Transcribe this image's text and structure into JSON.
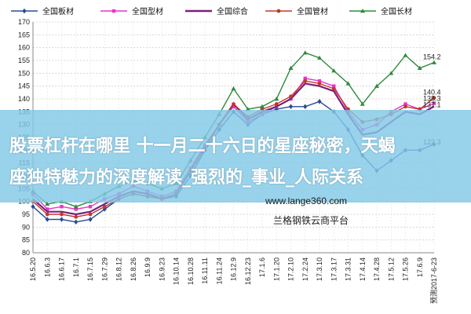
{
  "chart_data": {
    "type": "line",
    "ylim": [
      80,
      170
    ],
    "y_ticks": [
      80,
      85,
      90,
      95,
      100,
      105,
      110,
      115,
      120,
      125,
      130,
      135,
      140,
      145,
      150,
      155,
      160,
      165,
      170
    ],
    "x_tick_labels": [
      "16.5.20",
      "16.6.3",
      "16.6.17",
      "16.7.1",
      "16.7.15",
      "16.7.29",
      "16.8.12",
      "16.8.26",
      "16.9.9",
      "16.9.23",
      "16.10.14",
      "16.10.28",
      "16.11.11",
      "16.11.24",
      "16.12.9",
      "16.12.23",
      "17.1.6",
      "17.1.20",
      "17.2.10",
      "17.2.24",
      "17.3.10",
      "17.3.17",
      "17.3.31",
      "17.4.14",
      "17.4.28",
      "17.5.12",
      "17.5.26",
      "17.6.9",
      "预测2017-6-23"
    ],
    "grid": true,
    "legend_position": "top",
    "series": [
      {
        "name": "全国板材",
        "color": "#2b4a9a",
        "marker": "diamond",
        "values": [
          98,
          93,
          93,
          92,
          93,
          97,
          101,
          103,
          102,
          101,
          102,
          110,
          120,
          128,
          135,
          130,
          134,
          136,
          137,
          137,
          139,
          135,
          128,
          118,
          112,
          116,
          120,
          120,
          122.3
        ]
      },
      {
        "name": "全国型材",
        "color": "#e637c8",
        "marker": "square",
        "values": [
          103,
          97,
          98,
          97,
          98,
          101,
          103,
          106,
          104,
          102,
          104,
          113,
          122,
          130,
          137,
          131,
          134,
          137,
          140,
          148,
          147,
          145,
          135,
          128,
          130,
          135,
          138,
          136,
          138.3
        ]
      },
      {
        "name": "全国综合",
        "color": "#7b1f7b",
        "marker": "none",
        "values": [
          101,
          96,
          96,
          95,
          96,
          99,
          102,
          104,
          103,
          101,
          103,
          112,
          121,
          130,
          138,
          132,
          135,
          137,
          140,
          146,
          145,
          143,
          134,
          126,
          127,
          131,
          135,
          134,
          137.1
        ]
      },
      {
        "name": "全国管材",
        "color": "#c0392b",
        "marker": "circle",
        "values": [
          100,
          95,
          95,
          94,
          95,
          98,
          101,
          103,
          102,
          101,
          103,
          112,
          121,
          130,
          138,
          133,
          136,
          138,
          141,
          147,
          146,
          144,
          136,
          131,
          132,
          134,
          137,
          136,
          140.4
        ]
      },
      {
        "name": "全国长材",
        "color": "#2e8b3a",
        "marker": "triangle",
        "values": [
          104,
          99,
          100,
          98,
          100,
          103,
          106,
          108,
          107,
          105,
          107,
          116,
          125,
          134,
          144,
          136,
          137,
          140,
          152,
          158,
          156,
          151,
          146,
          138,
          145,
          150,
          157,
          152,
          154.2
        ]
      }
    ],
    "end_labels": [
      "154.2",
      "140.4",
      "138.3",
      "137.1",
      "122.3"
    ]
  },
  "overlay": {
    "banner_line1": "股票杠杆在哪里 十一月二十六日的星座秘密，天蝎",
    "banner_line2": "座独特魅力的深度解读_强烈的_事业_人际关系",
    "watermark_url": "www.lange360.com",
    "watermark_name": "兰格钢铁云商平台"
  }
}
